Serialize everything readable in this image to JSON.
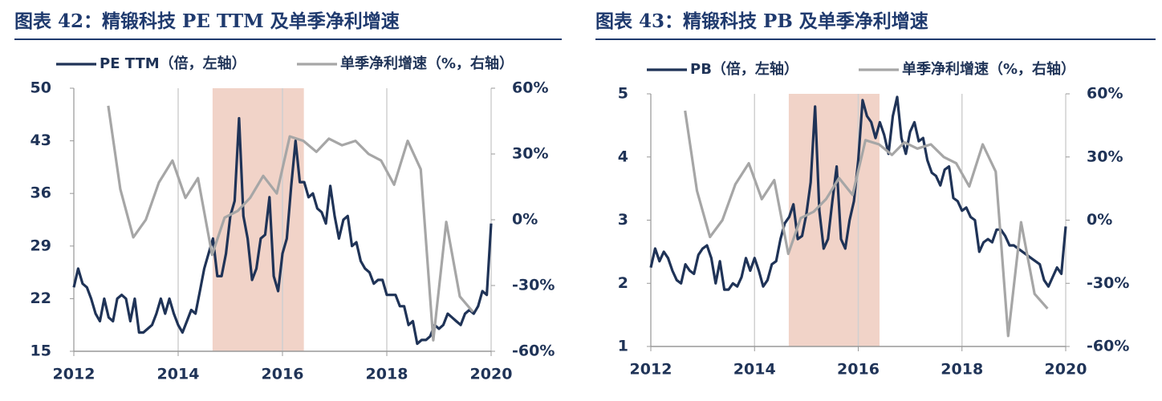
{
  "chart_data": [
    {
      "type": "line",
      "title": "图表 42：精锻科技 PE TTM 及单季净利增速",
      "xlim": [
        2012,
        2020
      ],
      "xticks": [
        2012,
        2014,
        2016,
        2018,
        2020
      ],
      "ylim": [
        15,
        50
      ],
      "yticks": [
        15,
        22,
        29,
        36,
        43,
        50
      ],
      "y2lim": [
        -60,
        60
      ],
      "y2ticks": [
        {
          "value": -60,
          "label": "-60%"
        },
        {
          "value": -30,
          "label": "-30%"
        },
        {
          "value": 0,
          "label": "0%"
        },
        {
          "value": 30,
          "label": "30%"
        },
        {
          "value": 60,
          "label": "60%"
        }
      ],
      "grid": "x",
      "highlight": [
        2014.66,
        2016.41
      ],
      "highlight_color": "#f1d3c8",
      "series": [
        {
          "name": "PE TTM（倍，左轴）",
          "color": "#1f3357",
          "x": [
            2012.0,
            2012.083,
            2012.167,
            2012.25,
            2012.333,
            2012.417,
            2012.5,
            2012.583,
            2012.667,
            2012.75,
            2012.833,
            2012.917,
            2013.0,
            2013.083,
            2013.167,
            2013.25,
            2013.333,
            2013.417,
            2013.5,
            2013.583,
            2013.667,
            2013.75,
            2013.833,
            2013.917,
            2014.0,
            2014.083,
            2014.167,
            2014.25,
            2014.333,
            2014.417,
            2014.5,
            2014.583,
            2014.667,
            2014.75,
            2014.833,
            2014.917,
            2015.0,
            2015.083,
            2015.167,
            2015.25,
            2015.333,
            2015.417,
            2015.5,
            2015.583,
            2015.667,
            2015.75,
            2015.833,
            2015.917,
            2016.0,
            2016.083,
            2016.167,
            2016.25,
            2016.333,
            2016.417,
            2016.5,
            2016.583,
            2016.667,
            2016.75,
            2016.833,
            2016.917,
            2017.0,
            2017.083,
            2017.167,
            2017.25,
            2017.333,
            2017.417,
            2017.5,
            2017.583,
            2017.667,
            2017.75,
            2017.833,
            2017.917,
            2018.0,
            2018.083,
            2018.167,
            2018.25,
            2018.333,
            2018.417,
            2018.5,
            2018.583,
            2018.667,
            2018.75,
            2018.833,
            2018.917,
            2019.0,
            2019.083,
            2019.167,
            2019.25,
            2019.333,
            2019.417,
            2019.5,
            2019.583,
            2019.667,
            2019.75,
            2019.833,
            2019.917,
            2020.0
          ],
          "values": [
            23.5,
            26,
            24,
            23.5,
            22,
            20,
            19,
            22,
            19.5,
            19,
            22,
            22.5,
            22,
            19,
            22,
            17.5,
            17.5,
            18,
            18.5,
            20,
            22,
            20,
            22,
            20,
            18.5,
            17.5,
            19,
            20.5,
            20,
            23,
            26,
            28,
            30,
            25,
            25,
            28,
            33,
            35,
            46,
            33,
            30,
            24.5,
            26,
            30,
            30.5,
            35.5,
            25,
            23,
            28,
            30,
            37,
            43,
            37.5,
            37.5,
            35.5,
            36,
            34,
            33.5,
            32,
            37,
            33,
            30,
            32.5,
            33,
            29,
            29.5,
            27,
            26,
            25.5,
            24,
            24.5,
            24.5,
            22.5,
            22.5,
            22.5,
            21,
            21,
            18.5,
            19,
            16,
            16.5,
            16.5,
            17,
            18.5,
            18,
            18.5,
            20,
            19.5,
            19,
            18.5,
            20,
            20.5,
            20,
            21,
            23,
            22.5,
            32
          ]
        },
        {
          "name": "单季净利增速（%，右轴）",
          "color": "#a6a6a6",
          "axis": "y2",
          "x": [
            2012.66,
            2012.89,
            2013.14,
            2013.38,
            2013.63,
            2013.89,
            2014.14,
            2014.38,
            2014.65,
            2014.89,
            2015.14,
            2015.38,
            2015.63,
            2015.89,
            2016.14,
            2016.4,
            2016.65,
            2016.89,
            2017.14,
            2017.4,
            2017.65,
            2017.89,
            2018.14,
            2018.4,
            2018.65,
            2018.89,
            2019.14,
            2019.4,
            2019.65
          ],
          "values": [
            52,
            14,
            -8,
            0,
            17,
            27,
            10,
            19,
            -16,
            1,
            4,
            10,
            20,
            12,
            38,
            36,
            31,
            37,
            34,
            36,
            30,
            27,
            16,
            36,
            23,
            -55,
            -1,
            -35,
            -42
          ]
        }
      ]
    },
    {
      "type": "line",
      "title": "图表 43：精锻科技 PB 及单季净利增速",
      "xlim": [
        2012,
        2020
      ],
      "xticks": [
        2012,
        2014,
        2016,
        2018,
        2020
      ],
      "ylim": [
        1,
        5
      ],
      "yticks": [
        1,
        2,
        3,
        4,
        5
      ],
      "y2lim": [
        -60,
        60
      ],
      "y2ticks": [
        {
          "value": -60,
          "label": "-60%"
        },
        {
          "value": -30,
          "label": "-30%"
        },
        {
          "value": 0,
          "label": "0%"
        },
        {
          "value": 30,
          "label": "30%"
        },
        {
          "value": 60,
          "label": "60%"
        }
      ],
      "grid": "x",
      "highlight": [
        2014.66,
        2016.41
      ],
      "highlight_color": "#f1d3c8",
      "series": [
        {
          "name": "PB（倍，左轴）",
          "color": "#1f3357",
          "x": [
            2012.0,
            2012.083,
            2012.167,
            2012.25,
            2012.333,
            2012.417,
            2012.5,
            2012.583,
            2012.667,
            2012.75,
            2012.833,
            2012.917,
            2013.0,
            2013.083,
            2013.167,
            2013.25,
            2013.333,
            2013.417,
            2013.5,
            2013.583,
            2013.667,
            2013.75,
            2013.833,
            2013.917,
            2014.0,
            2014.083,
            2014.167,
            2014.25,
            2014.333,
            2014.417,
            2014.5,
            2014.583,
            2014.667,
            2014.75,
            2014.833,
            2014.917,
            2015.0,
            2015.083,
            2015.167,
            2015.25,
            2015.333,
            2015.417,
            2015.5,
            2015.583,
            2015.667,
            2015.75,
            2015.833,
            2015.917,
            2016.0,
            2016.083,
            2016.167,
            2016.25,
            2016.333,
            2016.417,
            2016.5,
            2016.583,
            2016.667,
            2016.75,
            2016.833,
            2016.917,
            2017.0,
            2017.083,
            2017.167,
            2017.25,
            2017.333,
            2017.417,
            2017.5,
            2017.583,
            2017.667,
            2017.75,
            2017.833,
            2017.917,
            2018.0,
            2018.083,
            2018.167,
            2018.25,
            2018.333,
            2018.417,
            2018.5,
            2018.583,
            2018.667,
            2018.75,
            2018.833,
            2018.917,
            2019.0,
            2019.083,
            2019.167,
            2019.25,
            2019.333,
            2019.417,
            2019.5,
            2019.583,
            2019.667,
            2019.75,
            2019.833,
            2019.917,
            2020.0
          ],
          "values": [
            2.25,
            2.55,
            2.35,
            2.5,
            2.4,
            2.2,
            2.05,
            2.0,
            2.3,
            2.2,
            2.15,
            2.45,
            2.55,
            2.6,
            2.4,
            2.0,
            2.35,
            1.9,
            1.9,
            2.0,
            1.95,
            2.1,
            2.4,
            2.2,
            2.4,
            2.2,
            1.95,
            2.05,
            2.3,
            2.35,
            2.7,
            2.95,
            3.05,
            3.25,
            2.7,
            2.75,
            3.1,
            3.6,
            4.8,
            3.15,
            2.55,
            2.7,
            3.3,
            3.85,
            2.7,
            2.55,
            3.0,
            3.3,
            3.95,
            4.9,
            4.65,
            4.55,
            4.3,
            4.55,
            4.35,
            4.05,
            4.65,
            4.95,
            4.3,
            4.05,
            4.4,
            4.55,
            4.25,
            4.3,
            3.95,
            3.75,
            3.7,
            3.55,
            3.8,
            3.85,
            3.35,
            3.3,
            3.15,
            3.2,
            3.05,
            3.0,
            2.5,
            2.65,
            2.7,
            2.65,
            2.85,
            2.85,
            2.75,
            2.6,
            2.6,
            2.55,
            2.5,
            2.45,
            2.4,
            2.35,
            2.3,
            2.05,
            1.95,
            2.1,
            2.25,
            2.15,
            2.9
          ]
        },
        {
          "name": "单季净利增速（%，右轴）",
          "color": "#a6a6a6",
          "axis": "y2",
          "x": [
            2012.66,
            2012.89,
            2013.14,
            2013.38,
            2013.63,
            2013.89,
            2014.14,
            2014.38,
            2014.65,
            2014.89,
            2015.14,
            2015.38,
            2015.63,
            2015.89,
            2016.14,
            2016.4,
            2016.65,
            2016.89,
            2017.14,
            2017.4,
            2017.65,
            2017.89,
            2018.14,
            2018.4,
            2018.65,
            2018.89,
            2019.14,
            2019.4,
            2019.65
          ],
          "values": [
            52,
            14,
            -8,
            0,
            17,
            27,
            10,
            19,
            -16,
            1,
            4,
            10,
            20,
            12,
            38,
            36,
            31,
            37,
            34,
            36,
            30,
            27,
            16,
            36,
            23,
            -55,
            -1,
            -35,
            -42
          ]
        }
      ]
    }
  ]
}
